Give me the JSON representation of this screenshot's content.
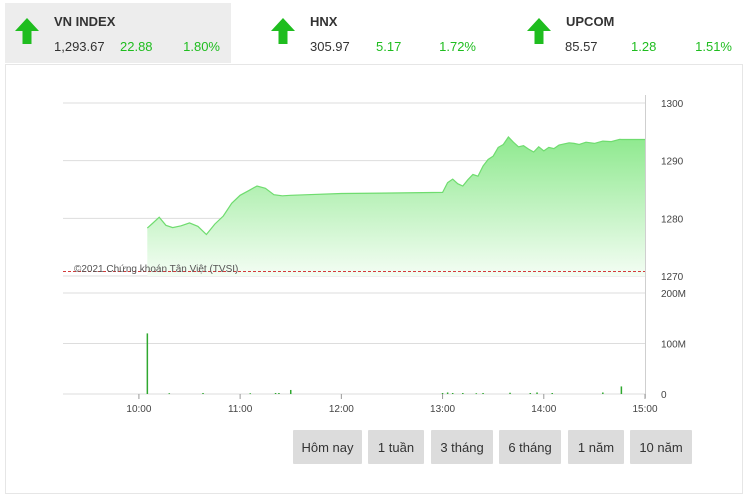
{
  "indices": [
    {
      "name": "VN INDEX",
      "value": "1,293.67",
      "change": "22.88",
      "percent": "1.80%",
      "direction": "up",
      "active": true
    },
    {
      "name": "HNX",
      "value": "305.97",
      "change": "5.17",
      "percent": "1.72%",
      "direction": "up",
      "active": false
    },
    {
      "name": "UPCOM",
      "value": "85.57",
      "change": "1.28",
      "percent": "1.51%",
      "direction": "up",
      "active": false
    }
  ],
  "colors": {
    "up": "#1fbd1f",
    "area_top": "#8ee98e",
    "area_bottom": "#f4fdf4",
    "reference": "#d43a3a",
    "volume": "#2fa82f"
  },
  "watermark": "©2021 Chứng khoán Tân Việt (TVSI)",
  "range_buttons": [
    "Hôm nay",
    "1 tuần",
    "3 tháng",
    "6 tháng",
    "1 năm",
    "10 năm"
  ],
  "chart_data": [
    {
      "type": "area",
      "ylim": [
        1270,
        1300
      ],
      "y_ticks": [
        "1300",
        "1290",
        "1280",
        "1270"
      ],
      "reference_value": 1270.79,
      "x_range": [
        "09:15",
        "15:00"
      ],
      "x": [
        "10:05",
        "10:08",
        "10:12",
        "10:16",
        "10:20",
        "10:25",
        "10:30",
        "10:35",
        "10:40",
        "10:45",
        "10:50",
        "10:55",
        "11:00",
        "11:05",
        "11:10",
        "11:15",
        "11:20",
        "11:25",
        "11:30",
        "11:40",
        "12:00",
        "12:30",
        "13:00",
        "13:03",
        "13:06",
        "13:09",
        "13:12",
        "13:15",
        "13:18",
        "13:21",
        "13:24",
        "13:27",
        "13:30",
        "13:33",
        "13:36",
        "13:39",
        "13:42",
        "13:45",
        "13:48",
        "13:51",
        "13:54",
        "13:57",
        "14:00",
        "14:03",
        "14:06",
        "14:09",
        "14:12",
        "14:15",
        "14:18",
        "14:21",
        "14:25",
        "14:30",
        "14:35",
        "14:40",
        "14:45",
        "14:46",
        "15:00"
      ],
      "values": [
        1278.3,
        1279.1,
        1280.2,
        1278.8,
        1278.4,
        1278.7,
        1279.2,
        1278.6,
        1277.2,
        1279.0,
        1280.4,
        1282.6,
        1284.0,
        1284.8,
        1285.6,
        1285.2,
        1284.1,
        1283.9,
        1284.0,
        1284.1,
        1284.3,
        1284.4,
        1284.5,
        1286.2,
        1286.8,
        1286.0,
        1285.6,
        1286.7,
        1287.6,
        1287.3,
        1289.1,
        1290.2,
        1290.8,
        1292.3,
        1292.8,
        1294.1,
        1293.2,
        1292.4,
        1292.6,
        1292.0,
        1291.5,
        1292.4,
        1291.7,
        1292.3,
        1292.1,
        1292.7,
        1292.9,
        1293.1,
        1293.0,
        1292.8,
        1293.2,
        1293.0,
        1293.4,
        1293.3,
        1293.7,
        1293.67,
        1293.67
      ]
    },
    {
      "type": "bar",
      "ylim": [
        0,
        200
      ],
      "y_unit": "M",
      "y_ticks": [
        "200M",
        "100M",
        "0"
      ],
      "x_ticks": [
        "10:00",
        "11:00",
        "12:00",
        "13:00",
        "14:00",
        "15:00"
      ],
      "x": [
        "10:05",
        "10:18",
        "10:38",
        "11:06",
        "11:21",
        "11:23",
        "11:30",
        "13:00",
        "13:03",
        "13:06",
        "13:12",
        "13:20",
        "13:24",
        "13:40",
        "13:52",
        "13:56",
        "14:05",
        "14:35",
        "14:46"
      ],
      "values": [
        120,
        1.5,
        2,
        1.5,
        2,
        2,
        8,
        2,
        3,
        2,
        2,
        1.5,
        2,
        2.5,
        2,
        3,
        2,
        3,
        15
      ]
    }
  ]
}
